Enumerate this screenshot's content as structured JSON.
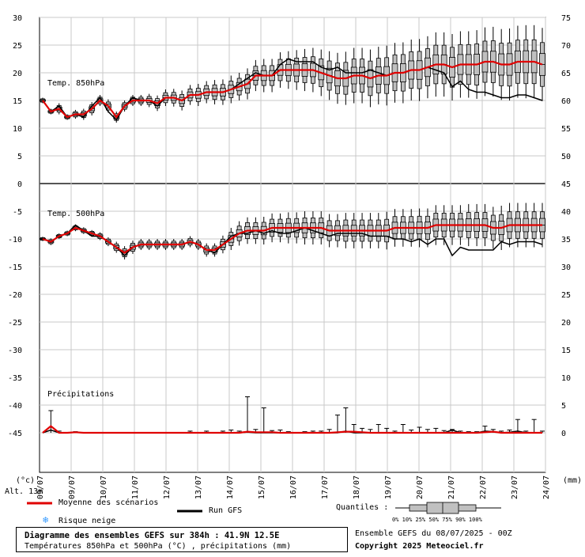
{
  "chart_data": {
    "type": "box",
    "dates": [
      "09/07",
      "10/07",
      "11/07",
      "12/07",
      "13/07",
      "14/07",
      "15/07",
      "16/07",
      "17/07",
      "18/07",
      "19/07",
      "20/07",
      "21/07",
      "22/07",
      "23/07",
      "24/07"
    ],
    "date_first": "09/07",
    "x_step_hours": 6,
    "left_axis_ticks": [
      30,
      25,
      20,
      15,
      10,
      5,
      0,
      -5,
      -10,
      -15,
      -20,
      -25,
      -30,
      -35,
      -40,
      -45
    ],
    "right_axis_ticks": [
      75,
      70,
      65,
      60,
      55,
      50,
      45,
      40,
      35,
      30,
      25,
      20,
      15,
      10,
      5,
      0
    ],
    "left_unit": "(°c)",
    "right_unit": "(mm)",
    "panels": [
      {
        "name": "t850",
        "label": "Temp. 850hPa",
        "ylim": [
          0,
          30
        ],
        "mean": [
          15,
          13,
          13.5,
          12,
          12.5,
          12.5,
          13.5,
          15,
          14,
          12,
          14,
          15,
          15,
          15,
          14.5,
          15.5,
          15.5,
          15,
          16,
          16,
          16.5,
          16.5,
          16.5,
          17,
          17.5,
          18,
          19.5,
          19.5,
          19.5,
          20.5,
          20.5,
          20.5,
          20.5,
          20.5,
          20,
          19.5,
          19,
          19,
          19.5,
          19.5,
          19,
          19.5,
          19.5,
          20,
          20,
          20.5,
          20.5,
          21,
          21.5,
          21.5,
          21,
          21.5,
          21.5,
          21.5,
          22,
          22,
          21.5,
          21.5,
          22,
          22,
          22,
          21.5
        ],
        "gfs": [
          15,
          13,
          14,
          12,
          12.5,
          12,
          14,
          15.5,
          13,
          11.5,
          14,
          15.5,
          15,
          15,
          14,
          15.5,
          15.5,
          15,
          16,
          16,
          16.5,
          16.5,
          16.5,
          17,
          18,
          19,
          20,
          19.5,
          19.5,
          21.5,
          22.5,
          22,
          22,
          22,
          21,
          20.5,
          21,
          20,
          20,
          20,
          20.5,
          20,
          19.5,
          20,
          20,
          20.5,
          20.5,
          21,
          20.5,
          20,
          17.5,
          18.5,
          17,
          16.5,
          16.5,
          16,
          15.5,
          15.5,
          16,
          16,
          15.5,
          15
        ],
        "spread": [
          0.5,
          0.5,
          1,
          0.5,
          0.8,
          1,
          1.2,
          1,
          1.2,
          1,
          1,
          1,
          1,
          1.2,
          1.4,
          1.5,
          1.6,
          1.8,
          1.8,
          2,
          2,
          2.2,
          2.3,
          2.5,
          2.5,
          2.8,
          2.8,
          3,
          3,
          3.2,
          3.4,
          3.6,
          3.8,
          4,
          4.2,
          4.4,
          4.6,
          4.8,
          5,
          5,
          5.2,
          5.2,
          5.4,
          5.4,
          5.5,
          5.5,
          5.6,
          5.6,
          5.8,
          5.8,
          6,
          6,
          6,
          6.2,
          6.2,
          6.3,
          6.4,
          6.5,
          6.5,
          6.6,
          6.6,
          6.6
        ]
      },
      {
        "name": "t500",
        "label": "Temp. 500hPa",
        "ylim": [
          -20,
          0
        ],
        "mean": [
          -10,
          -10.5,
          -9.5,
          -9,
          -8,
          -8.5,
          -9,
          -9.5,
          -10.5,
          -11.5,
          -12.5,
          -11.5,
          -11,
          -11,
          -11,
          -11,
          -11,
          -11,
          -10.5,
          -11,
          -12,
          -12,
          -11,
          -10,
          -9,
          -8.5,
          -8.5,
          -8.5,
          -8,
          -8,
          -8,
          -8,
          -8,
          -8,
          -8,
          -8.5,
          -8.5,
          -8.5,
          -8.5,
          -8.5,
          -8.5,
          -8.5,
          -8.5,
          -8,
          -8,
          -8,
          -8,
          -8,
          -7.5,
          -7.5,
          -7.5,
          -7.5,
          -7.5,
          -7.5,
          -7.5,
          -8,
          -8,
          -7.5,
          -7.5,
          -7.5,
          -7.5,
          -7.5
        ],
        "gfs": [
          -10,
          -10.5,
          -9.5,
          -9,
          -7.5,
          -8.5,
          -9.5,
          -9.5,
          -10.5,
          -11.5,
          -13,
          -11.5,
          -11,
          -11,
          -11,
          -11,
          -11,
          -11,
          -10.5,
          -11,
          -12,
          -12.5,
          -11,
          -9.5,
          -9,
          -9,
          -8.5,
          -9,
          -8.5,
          -9,
          -9,
          -8.5,
          -8,
          -8.5,
          -9,
          -9.5,
          -9,
          -9,
          -9,
          -9,
          -9.5,
          -9.5,
          -9.5,
          -10,
          -10,
          -10.5,
          -10,
          -11,
          -10,
          -10,
          -13,
          -11.5,
          -12,
          -12,
          -12,
          -12,
          -10.5,
          -11,
          -10.5,
          -10.5,
          -10.5,
          -11
        ],
        "spread": [
          0.4,
          0.6,
          0.5,
          0.5,
          0.6,
          0.6,
          0.6,
          0.7,
          0.8,
          1,
          1.2,
          1.2,
          1,
          1,
          1,
          1,
          1,
          1,
          1,
          1,
          1.2,
          1.2,
          1.6,
          2,
          2.2,
          2.4,
          2.4,
          2.5,
          2.6,
          2.6,
          2.8,
          2.8,
          3,
          3,
          3,
          3,
          3,
          3.2,
          3.2,
          3.2,
          3.2,
          3.2,
          3.4,
          3.4,
          3.4,
          3.4,
          3.5,
          3.5,
          3.6,
          3.6,
          3.6,
          3.6,
          3.8,
          3.8,
          3.8,
          3.8,
          4,
          4,
          4,
          4,
          4,
          4
        ]
      },
      {
        "name": "precip",
        "label": "Précipitations",
        "ylim": [
          0,
          5
        ],
        "mean": [
          0,
          1.2,
          0,
          0,
          0.1,
          0,
          0,
          0,
          0,
          0,
          0,
          0,
          0,
          0,
          0,
          0,
          0,
          0,
          0,
          0,
          0,
          0,
          0,
          0,
          0,
          0.2,
          0.1,
          0.1,
          0.1,
          0,
          0,
          0,
          0,
          0,
          0,
          0,
          0.1,
          0.2,
          0.2,
          0.1,
          0,
          0,
          0,
          0,
          0,
          0,
          0,
          0,
          0,
          0,
          0,
          0,
          0,
          0,
          0.1,
          0.2,
          0,
          0,
          0,
          0,
          0,
          0
        ],
        "gfs": [
          0,
          0.5,
          0,
          0,
          0.1,
          0,
          0,
          0,
          0,
          0,
          0,
          0,
          0,
          0,
          0,
          0,
          0,
          0,
          0,
          0,
          0,
          0,
          0,
          0,
          0,
          0.1,
          0,
          0,
          0,
          0,
          0,
          0,
          0,
          0,
          0,
          0,
          0,
          0.3,
          0,
          0,
          0,
          0,
          0,
          0,
          0,
          0,
          0,
          0,
          0,
          0,
          0.5,
          0,
          0,
          0,
          0.3,
          0.2,
          0,
          0.1,
          0.3,
          0,
          0,
          0
        ],
        "max": [
          0,
          4,
          0.3,
          0,
          0.2,
          0,
          0,
          0,
          0,
          0,
          0,
          0,
          0,
          0,
          0,
          0,
          0,
          0,
          0.3,
          0,
          0.3,
          0,
          0.3,
          0.5,
          0.3,
          6.5,
          0.6,
          4.5,
          0.4,
          0.5,
          0.2,
          0,
          0.2,
          0.3,
          0.3,
          0.6,
          3.2,
          4.5,
          1.5,
          0.8,
          0.6,
          1.5,
          0.8,
          0.3,
          1.5,
          0.5,
          1,
          0.6,
          0.8,
          0.4,
          0.6,
          0.3,
          0.2,
          0.2,
          1.2,
          0.6,
          0.3,
          0.5,
          2.4,
          0.3,
          2.4,
          0.3
        ]
      }
    ]
  },
  "labels": {
    "alt": "Alt. 13m",
    "legend_mean": "Moyenne des scénarios",
    "legend_gfs": "Run GFS",
    "legend_snow": "Risque neige",
    "quantiles_label": "Quantiles :",
    "quantile_ticks": "0%  10% 25% 50% 75% 90% 100%",
    "title": "Diagramme des ensembles GEFS sur 384h : 41.9N 12.5E",
    "subtitle": "Températures 850hPa et 500hPa (°C) , précipitations (mm)",
    "run_info": "Ensemble GEFS du 08/07/2025 - 00Z",
    "copyright": "Copyright 2025 Meteociel.fr"
  },
  "colors": {
    "mean": "#e00000",
    "gfs": "#000000",
    "box_fill": "#c0c0c0",
    "grid": "#c8c8c8",
    "snow": "#3399ff"
  }
}
